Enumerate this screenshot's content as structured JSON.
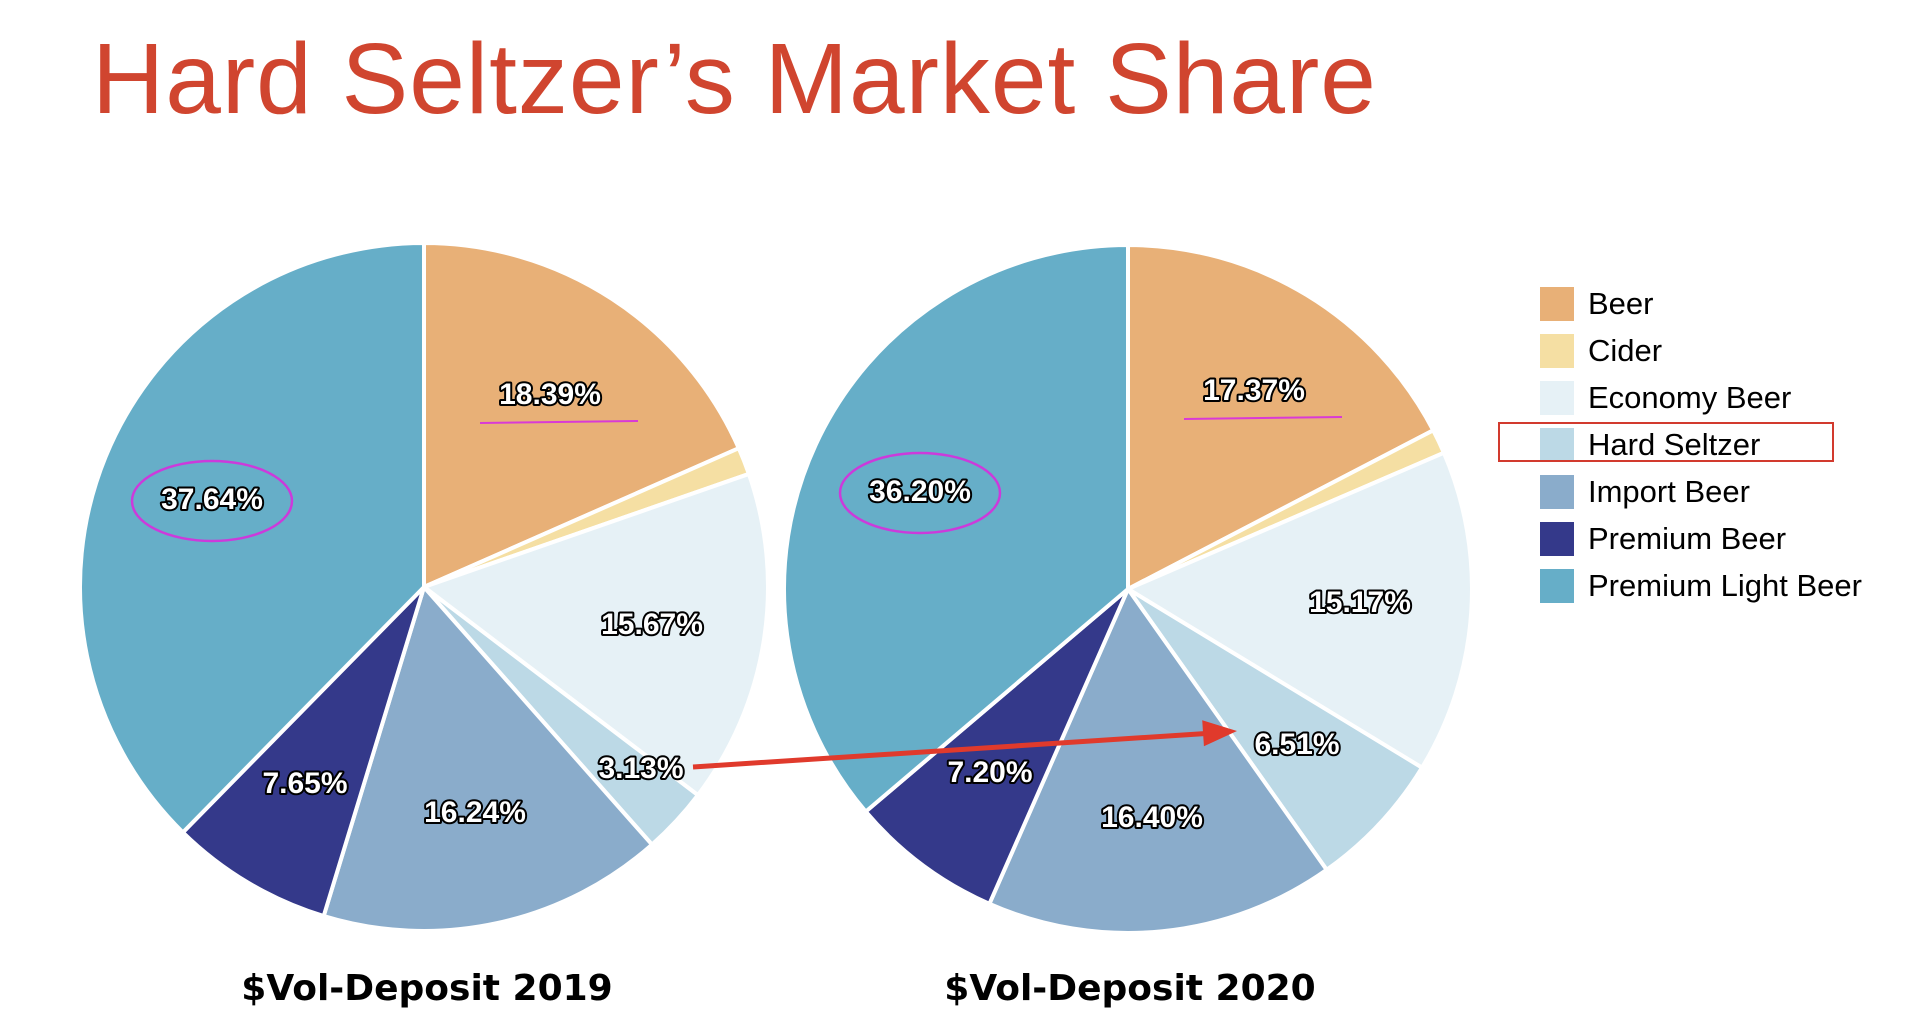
{
  "title": "Hard Seltzer’s Market Share",
  "colors": {
    "Beer": "#e8b077",
    "Cider": "#f5dfa3",
    "Economy Beer": "#e6f1f6",
    "Hard Seltzer": "#bcd9e6",
    "Import Beer": "#8aaccb",
    "Premium Beer": "#34398a",
    "Premium Light Beer": "#66aec8",
    "title": "#d0452f",
    "highlight_ellipse": "#cc3adb",
    "underline": "#d93ad6",
    "arrow": "#e03a2c",
    "legend_box": "#d23a2e"
  },
  "legend": {
    "items": [
      "Beer",
      "Cider",
      "Economy Beer",
      "Hard Seltzer",
      "Import Beer",
      "Premium Beer",
      "Premium Light Beer"
    ],
    "highlighted": "Hard Seltzer",
    "placement": "right"
  },
  "chart_data": [
    {
      "type": "pie",
      "title": "$Vol-Deposit 2019",
      "categories": [
        "Beer",
        "Cider",
        "Economy Beer",
        "Hard Seltzer",
        "Import Beer",
        "Premium Beer",
        "Premium Light Beer"
      ],
      "values": [
        18.39,
        1.28,
        15.67,
        3.13,
        16.24,
        7.65,
        37.64
      ],
      "labels": [
        "18.39%",
        "",
        "15.67%",
        "3.13%",
        "16.24%",
        "7.65%",
        "37.64%"
      ]
    },
    {
      "type": "pie",
      "title": "$Vol-Deposit 2020",
      "categories": [
        "Beer",
        "Cider",
        "Economy Beer",
        "Hard Seltzer",
        "Import Beer",
        "Premium Beer",
        "Premium Light Beer"
      ],
      "values": [
        17.37,
        1.15,
        15.17,
        6.51,
        16.4,
        7.2,
        36.2
      ],
      "labels": [
        "17.37%",
        "",
        "15.17%",
        "6.51%",
        "16.40%",
        "7.20%",
        "36.20%"
      ]
    }
  ],
  "annotations": {
    "arrow": {
      "from": "3.13%",
      "to": "6.51%"
    },
    "circled": [
      "37.64%",
      "36.20%"
    ],
    "underlined": [
      "18.39%",
      "17.37%"
    ]
  }
}
